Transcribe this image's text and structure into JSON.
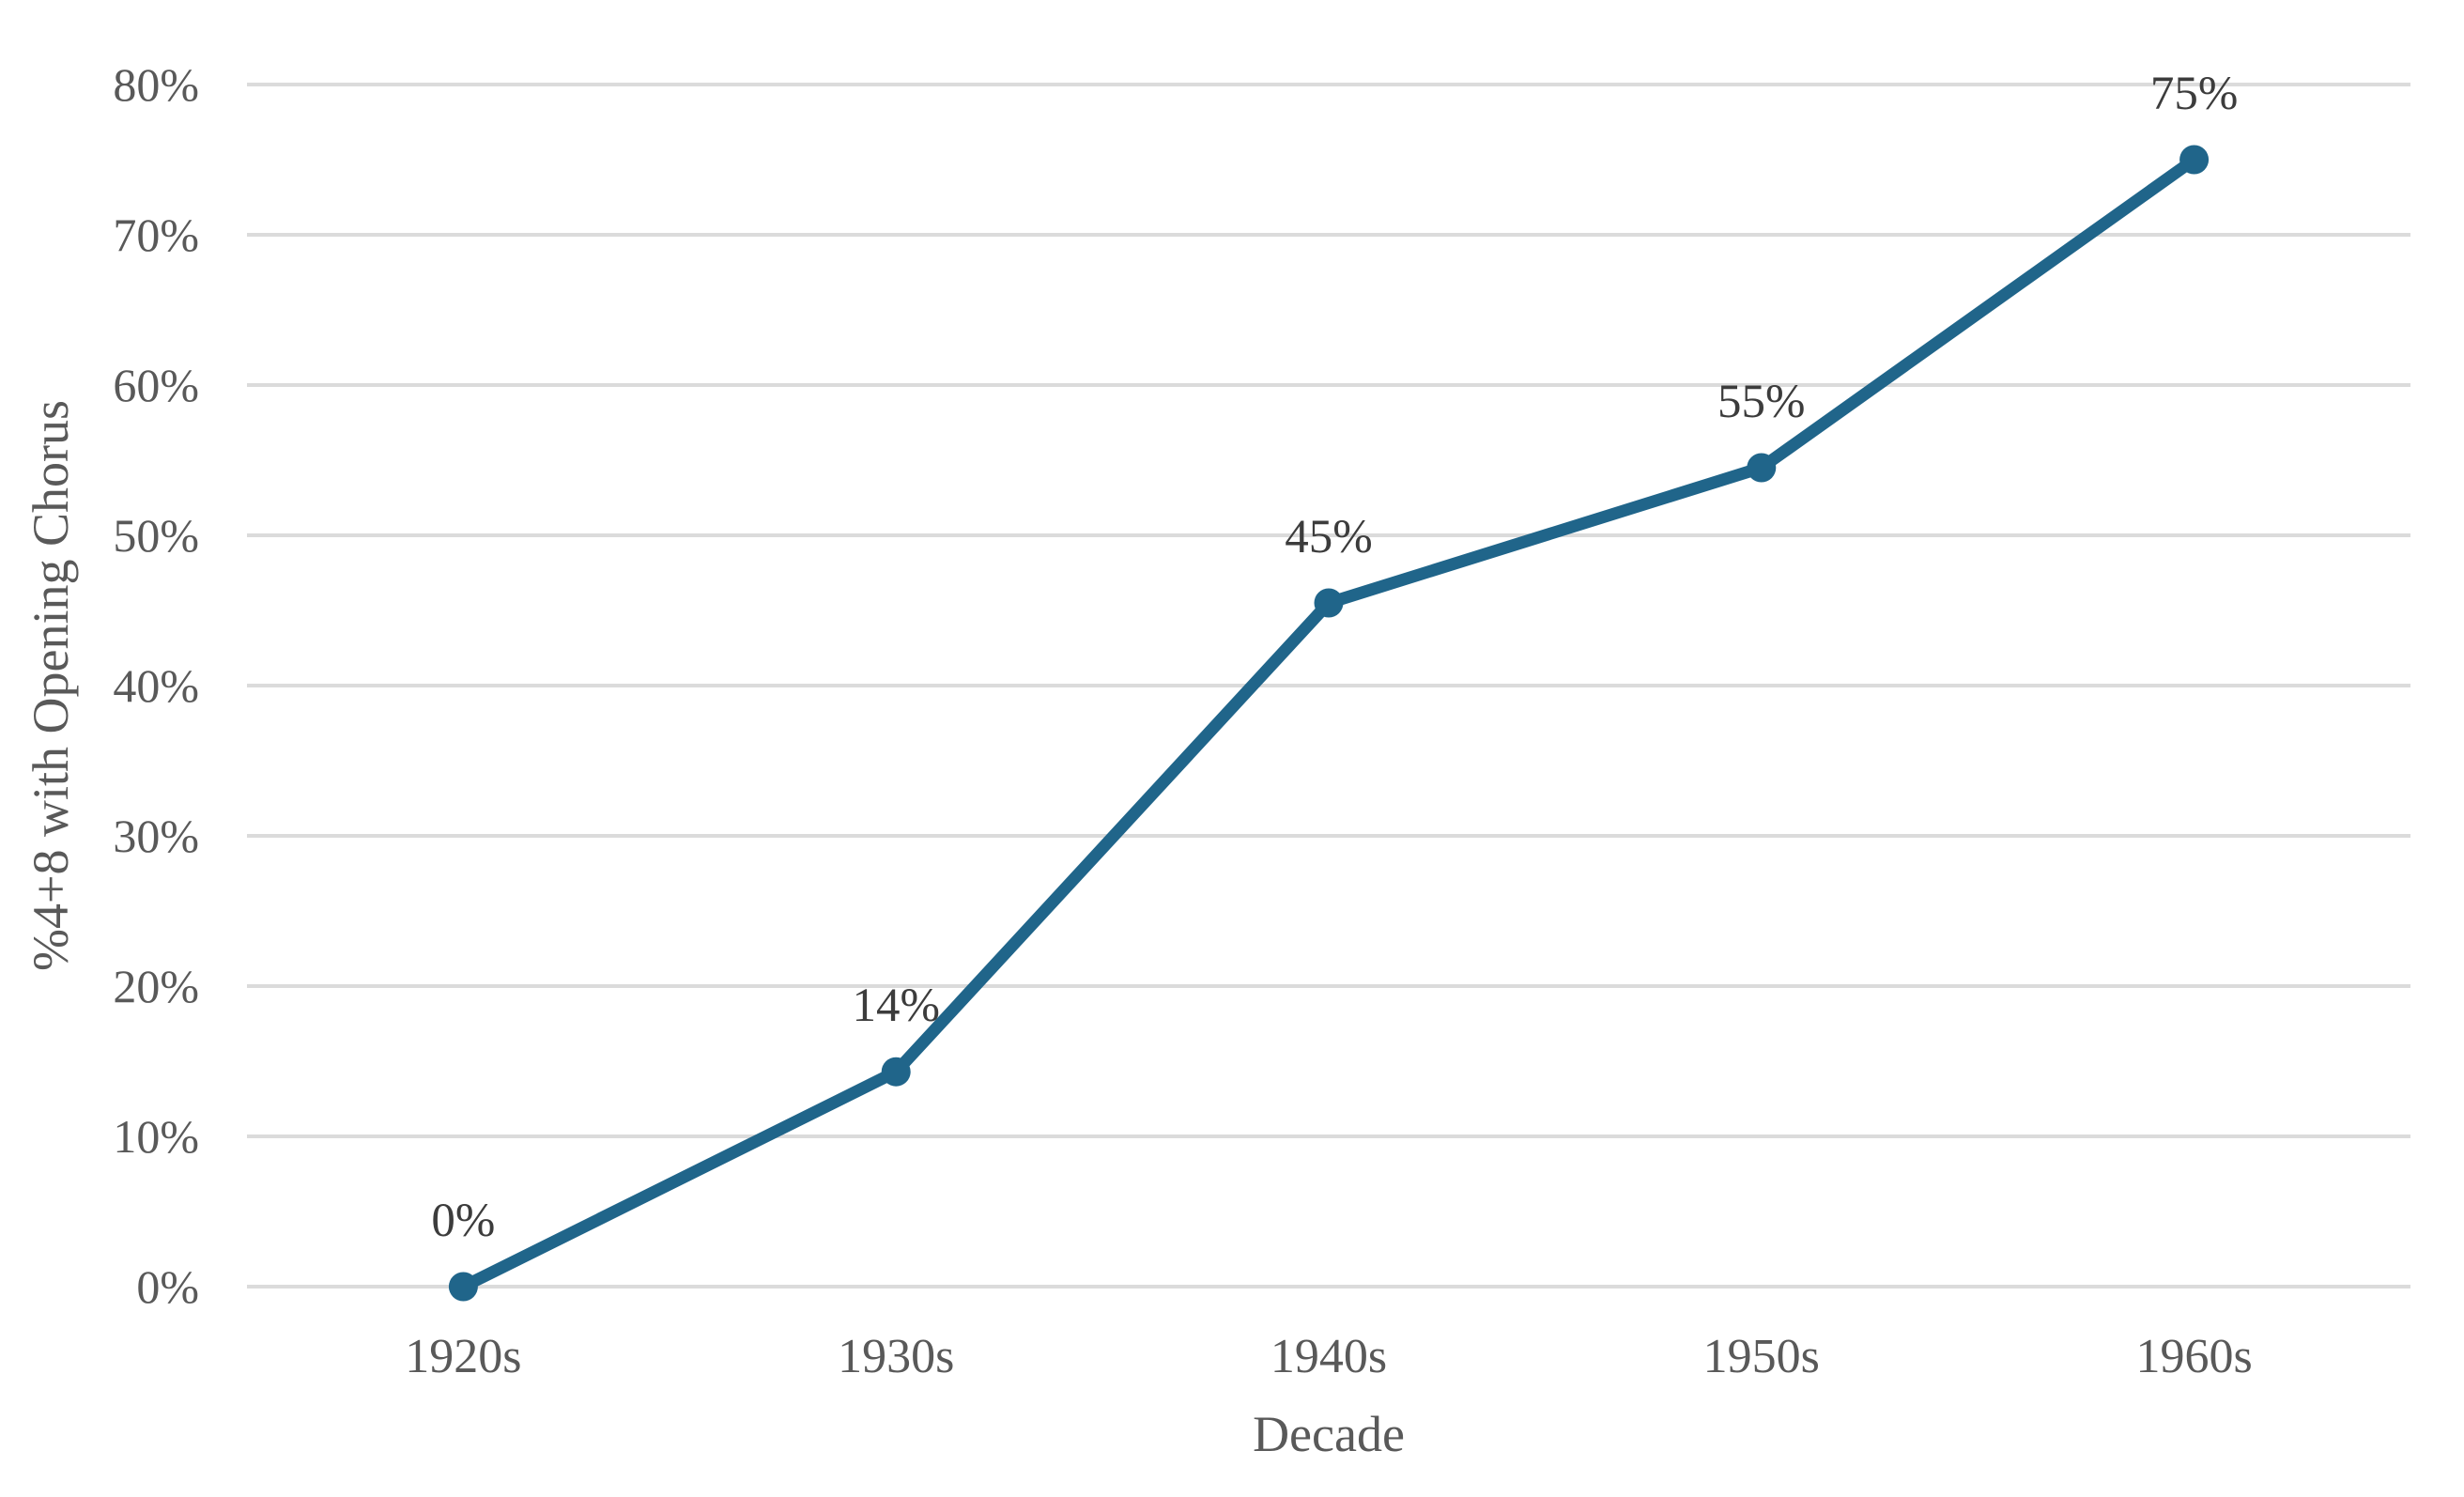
{
  "chart_data": {
    "type": "line",
    "title": "",
    "xlabel": "Decade",
    "ylabel": "%4+8 with Opening Chorus",
    "categories": [
      "1920s",
      "1930s",
      "1940s",
      "1950s",
      "1960s"
    ],
    "values": [
      0,
      14.3,
      45.5,
      54.5,
      75
    ],
    "point_labels": [
      "0%",
      "14%",
      "45%",
      "55%",
      "75%"
    ],
    "y_ticks": [
      "0%",
      "10%",
      "20%",
      "30%",
      "40%",
      "50%",
      "60%",
      "70%",
      "80%"
    ],
    "ylim": [
      0,
      80
    ],
    "grid": "horizontal",
    "legend": "none",
    "colors": {
      "line": "#20658A",
      "marker": "#20658A",
      "gridline": "#DBDBDB",
      "axis_text": "#595959",
      "data_label": "#3C3C3C"
    }
  }
}
